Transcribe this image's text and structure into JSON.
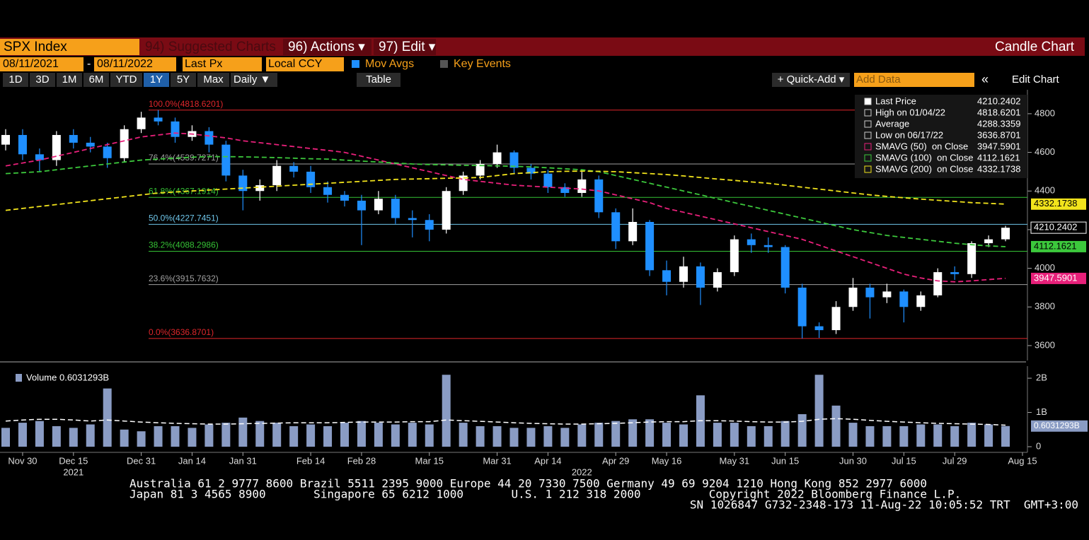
{
  "header": {
    "ticker": "SPX Index",
    "suggested": "94) Suggested Charts",
    "actions": "96) Actions ▾",
    "edit": "97) Edit ▾",
    "chart_kind": "Candle Chart"
  },
  "controls": {
    "start_date": "08/11/2021",
    "dash": "-",
    "end_date": "08/11/2022",
    "field": "Last Px",
    "currency": "Local CCY",
    "mov_avgs": "Mov Avgs",
    "key_events": "Key Events"
  },
  "toolbar": {
    "ranges": [
      "1D",
      "3D",
      "1M",
      "6M",
      "YTD",
      "1Y",
      "5Y",
      "Max"
    ],
    "selected": "1Y",
    "frequency": "Daily ▼",
    "table": "Table",
    "quick_add": "+ Quick-Add ▾",
    "add_data": "Add Data",
    "collapse": "«",
    "edit_chart": "Edit Chart"
  },
  "chart_data": {
    "type": "candlestick",
    "categories": [
      null,
      "Nov 30",
      null,
      null,
      "Dec 15",
      null,
      null,
      null,
      "Dec 31",
      null,
      null,
      "Jan 14",
      null,
      null,
      "Jan 31",
      null,
      null,
      null,
      "Feb 14",
      null,
      null,
      "Feb 28",
      null,
      null,
      null,
      "Mar 15",
      null,
      null,
      null,
      "Mar 31",
      null,
      null,
      "Apr 14",
      null,
      null,
      null,
      "Apr 29",
      null,
      null,
      "May 16",
      null,
      null,
      null,
      "May 31",
      null,
      null,
      "Jun 15",
      null,
      null,
      null,
      "Jun 30",
      null,
      null,
      "Jul 15",
      null,
      null,
      "Jul 29",
      null,
      null,
      null,
      "Aug 15"
    ],
    "years": [
      null,
      null,
      null,
      null,
      "2021",
      null,
      null,
      null,
      null,
      null,
      null,
      null,
      null,
      null,
      null,
      null,
      null,
      null,
      null,
      null,
      null,
      null,
      null,
      null,
      null,
      null,
      null,
      null,
      null,
      null,
      null,
      null,
      null,
      null,
      "2022",
      null,
      null,
      null,
      null,
      null,
      null,
      null,
      null,
      null,
      null,
      null,
      null,
      null,
      null,
      null,
      null,
      null,
      null,
      null,
      null,
      null,
      null,
      null,
      null,
      null,
      null
    ],
    "open": [
      4640,
      4690,
      4590,
      4560,
      4690,
      4650,
      4630,
      4570,
      4720,
      4780,
      4760,
      4680,
      4710,
      4640,
      4480,
      4400,
      4430,
      4530,
      4500,
      4420,
      4380,
      4350,
      4300,
      4360,
      4260,
      4250,
      4200,
      4400,
      4480,
      4540,
      4600,
      4520,
      4490,
      4420,
      4390,
      4460,
      4290,
      4140,
      4240,
      3990,
      3930,
      4010,
      3900,
      3980,
      4150,
      4120,
      4110,
      3900,
      3700,
      3680,
      3800,
      3900,
      3850,
      3880,
      3800,
      3860,
      3980,
      3970,
      4130,
      4150,
      null
    ],
    "high": [
      4720,
      4720,
      4620,
      4710,
      4720,
      4680,
      4650,
      4740,
      4810,
      4819,
      4780,
      4740,
      4730,
      4660,
      4510,
      4460,
      4560,
      4550,
      4530,
      4450,
      4400,
      4380,
      4400,
      4380,
      4300,
      4280,
      4420,
      4500,
      4560,
      4640,
      4610,
      4540,
      4510,
      4440,
      4510,
      4480,
      4310,
      4310,
      4250,
      4040,
      4060,
      4030,
      4000,
      4170,
      4180,
      4160,
      4120,
      3920,
      3720,
      3830,
      3950,
      3920,
      3920,
      3890,
      3880,
      4000,
      4010,
      4140,
      4170,
      4220,
      null
    ],
    "low": [
      4610,
      4560,
      4500,
      4530,
      4620,
      4600,
      4520,
      4550,
      4700,
      4740,
      4650,
      4660,
      4600,
      4450,
      4300,
      4350,
      4400,
      4470,
      4390,
      4340,
      4320,
      4120,
      4280,
      4230,
      4160,
      4140,
      4180,
      4380,
      4460,
      4520,
      4490,
      4460,
      4390,
      4370,
      4370,
      4260,
      4100,
      4120,
      3960,
      3860,
      3900,
      3810,
      3880,
      3960,
      4080,
      4080,
      3870,
      3637,
      3640,
      3660,
      3780,
      3740,
      3820,
      3720,
      3780,
      3850,
      3940,
      3950,
      4110,
      4140,
      null
    ],
    "close": [
      4690,
      4590,
      4560,
      4690,
      4650,
      4630,
      4570,
      4720,
      4780,
      4760,
      4680,
      4710,
      4640,
      4480,
      4400,
      4430,
      4530,
      4500,
      4420,
      4380,
      4350,
      4300,
      4360,
      4260,
      4250,
      4200,
      4400,
      4480,
      4540,
      4600,
      4520,
      4490,
      4420,
      4390,
      4460,
      4290,
      4140,
      4240,
      3990,
      3930,
      4010,
      3900,
      3980,
      4150,
      4120,
      4110,
      3900,
      3700,
      3680,
      3800,
      3900,
      3850,
      3880,
      3800,
      3860,
      3980,
      3970,
      4130,
      4150,
      4210,
      null
    ],
    "up_color": "#ffffff",
    "down_color": "#1f8fff",
    "series": [
      {
        "name": "SMAVG (50)  on Close",
        "color": "#e8207a",
        "dash": "7,4",
        "last": 3947.5901,
        "values": [
          4530,
          4545,
          4560,
          4580,
          4600,
          4620,
          4640,
          4660,
          4680,
          4690,
          4700,
          4695,
          4685,
          4675,
          4660,
          4650,
          4640,
          4630,
          4620,
          4610,
          4600,
          4580,
          4560,
          4540,
          4520,
          4500,
          4480,
          4460,
          4450,
          4440,
          4430,
          4425,
          4420,
          4415,
          4410,
          4400,
          4380,
          4360,
          4340,
          4310,
          4290,
          4270,
          4250,
          4230,
          4210,
          4190,
          4170,
          4150,
          4120,
          4090,
          4060,
          4030,
          4000,
          3970,
          3950,
          3935,
          3930,
          3935,
          3942,
          3948,
          null
        ]
      },
      {
        "name": "SMAVG (100)  on Close",
        "color": "#3cc83c",
        "dash": "7,4",
        "last": 4112.1621,
        "values": [
          4490,
          4495,
          4500,
          4510,
          4520,
          4530,
          4540,
          4550,
          4560,
          4565,
          4570,
          4575,
          4578,
          4578,
          4577,
          4575,
          4573,
          4570,
          4567,
          4565,
          4560,
          4555,
          4550,
          4545,
          4540,
          4537,
          4535,
          4533,
          4532,
          4530,
          4528,
          4525,
          4520,
          4515,
          4510,
          4500,
          4480,
          4460,
          4440,
          4420,
          4400,
          4380,
          4360,
          4340,
          4320,
          4300,
          4280,
          4260,
          4240,
          4220,
          4200,
          4185,
          4170,
          4160,
          4150,
          4140,
          4130,
          4122,
          4116,
          4112,
          null
        ]
      },
      {
        "name": "SMAVG (200)  on Close",
        "color": "#f2e41c",
        "dash": "7,4",
        "last": 4332.1738,
        "values": [
          4300,
          4310,
          4320,
          4330,
          4340,
          4350,
          4360,
          4370,
          4380,
          4390,
          4395,
          4400,
          4405,
          4410,
          4415,
          4420,
          4425,
          4430,
          4435,
          4440,
          4445,
          4450,
          4455,
          4460,
          4462,
          4464,
          4466,
          4468,
          4470,
          4480,
          4490,
          4495,
          4500,
          4502,
          4503,
          4502,
          4500,
          4495,
          4490,
          4485,
          4478,
          4470,
          4462,
          4455,
          4447,
          4440,
          4430,
          4420,
          4410,
          4400,
          4390,
          4380,
          4372,
          4365,
          4358,
          4352,
          4346,
          4340,
          4336,
          4332,
          null
        ]
      }
    ],
    "legend": [
      {
        "name": "Last Price",
        "value": 4210.2402
      },
      {
        "name": "High on 01/04/22",
        "value": 4818.6201
      },
      {
        "name": "Average",
        "value": 4288.3359
      },
      {
        "name": "Low on 06/17/22",
        "value": 3636.8701
      }
    ],
    "levels": [
      {
        "label": "100.0%(4818.6201)",
        "value": 4818.6201,
        "color": "#e0262b"
      },
      {
        "label": "76.4%(4539.7271)",
        "value": 4539.7271,
        "color": "#a0a0a0"
      },
      {
        "label": "61.8%(4367.1914)",
        "value": 4367.1914,
        "color": "#35c135"
      },
      {
        "label": "50.0%(4227.7451)",
        "value": 4227.7451,
        "color": "#6fc6ea"
      },
      {
        "label": "38.2%(4088.2986)",
        "value": 4088.2986,
        "color": "#35c135"
      },
      {
        "label": "23.6%(3915.7632)",
        "value": 3915.7632,
        "color": "#a0a0a0"
      },
      {
        "label": "0.0%(3636.8701)",
        "value": 3636.8701,
        "color": "#e0262b"
      }
    ],
    "ylim": [
      3523,
      4924
    ],
    "yticks": [
      3600,
      3800,
      4000,
      4200,
      4400,
      4600,
      4800
    ],
    "volume": {
      "title": "Volume 0.6031293B",
      "last_label": "0.6031293B",
      "color": "#8a9cc4",
      "values": [
        0.55,
        0.7,
        0.75,
        0.6,
        0.55,
        0.65,
        1.7,
        0.5,
        0.45,
        0.6,
        0.6,
        0.55,
        0.65,
        0.7,
        0.85,
        0.75,
        0.7,
        0.6,
        0.65,
        0.6,
        0.7,
        0.75,
        0.7,
        0.65,
        0.7,
        0.65,
        2.1,
        0.7,
        0.6,
        0.6,
        0.55,
        0.55,
        0.6,
        0.55,
        0.65,
        0.7,
        0.75,
        0.8,
        0.8,
        0.7,
        0.65,
        1.5,
        0.7,
        0.7,
        0.6,
        0.6,
        0.75,
        0.95,
        2.1,
        1.2,
        0.7,
        0.6,
        0.6,
        0.6,
        0.65,
        0.65,
        0.6,
        0.7,
        0.65,
        0.6031293,
        null
      ],
      "avg_values": [
        0.75,
        0.78,
        0.8,
        0.8,
        0.78,
        0.75,
        0.78,
        0.75,
        0.72,
        0.7,
        0.68,
        0.67,
        0.66,
        0.66,
        0.67,
        0.68,
        0.69,
        0.7,
        0.7,
        0.7,
        0.71,
        0.72,
        0.72,
        0.72,
        0.73,
        0.73,
        0.78,
        0.76,
        0.74,
        0.72,
        0.7,
        0.68,
        0.67,
        0.66,
        0.66,
        0.67,
        0.68,
        0.7,
        0.72,
        0.73,
        0.73,
        0.76,
        0.76,
        0.75,
        0.73,
        0.72,
        0.72,
        0.74,
        0.8,
        0.82,
        0.8,
        0.77,
        0.74,
        0.72,
        0.7,
        0.68,
        0.67,
        0.66,
        0.65,
        0.63,
        null
      ],
      "ylim": [
        0,
        2.27
      ],
      "yticks": [
        0,
        {
          "value": 1,
          "label": "1B"
        },
        {
          "value": 2,
          "label": "2B"
        }
      ]
    }
  },
  "footer": [
    "Australia 61 2 9777 8600 Brazil 5511 2395 9000 Europe 44 20 7330 7500 Germany 49 69 9204 1210 Hong Kong 852 2977 6000",
    "Japan 81 3 4565 8900       Singapore 65 6212 1000       U.S. 1 212 318 2000          Copyright 2022 Bloomberg Finance L.P.",
    "SN 1026847 G732-2348-173 11-Aug-22 10:05:52 TRT  GMT+3:00"
  ]
}
